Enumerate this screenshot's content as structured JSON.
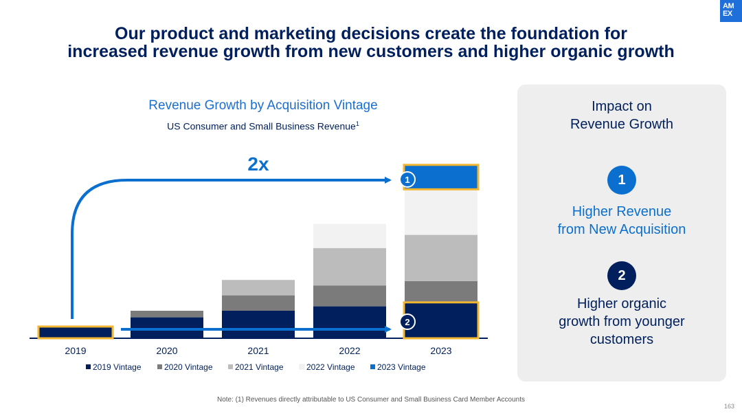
{
  "logo": {
    "text": "AM EX"
  },
  "slide_title": {
    "line1": "Our product and marketing decisions create the foundation for",
    "line2": "increased revenue growth from new customers and higher organic growth"
  },
  "chart_data": {
    "type": "bar",
    "stacked": true,
    "title": "Revenue Growth by Acquisition Vintage",
    "subtitle": "US Consumer and Small Business Revenue",
    "subtitle_footnote_marker": "1",
    "categories": [
      "2019",
      "2020",
      "2021",
      "2022",
      "2023"
    ],
    "series": [
      {
        "name": "2019 Vintage",
        "color": "#001f5c",
        "values": [
          10,
          19,
          25,
          29,
          32
        ]
      },
      {
        "name": "2020 Vintage",
        "color": "#7b7b7b",
        "values": [
          0,
          6,
          14,
          19,
          20
        ]
      },
      {
        "name": "2021 Vintage",
        "color": "#bcbcbc",
        "values": [
          0,
          0,
          14,
          34,
          42
        ]
      },
      {
        "name": "2022 Vintage",
        "color": "#f2f2f2",
        "values": [
          0,
          0,
          0,
          22,
          42
        ]
      },
      {
        "name": "2023 Vintage",
        "color": "#0a6fce",
        "values": [
          0,
          0,
          0,
          0,
          21
        ]
      }
    ],
    "ylim": [
      0,
      160
    ],
    "grid": false,
    "legend": "bottom",
    "annotations": {
      "multiplier_label": "2x",
      "top_marker": "1",
      "bottom_marker": "2"
    },
    "highlight_color": "#f2b632"
  },
  "panel": {
    "title_line1": "Impact on",
    "title_line2": "Revenue Growth",
    "item1": {
      "number": "1",
      "line1": "Higher Revenue",
      "line2": "from New Acquisition",
      "circle_color": "#0a6fce",
      "text_color": "#0a6fce"
    },
    "item2": {
      "number": "2",
      "line1": "Higher organic",
      "line2": "growth from younger",
      "line3": "customers",
      "circle_color": "#001f5c",
      "text_color": "#001f5c"
    }
  },
  "footnote": "Note: (1) Revenues directly attributable to US Consumer and Small Business Card Member Accounts",
  "page_number": "163"
}
